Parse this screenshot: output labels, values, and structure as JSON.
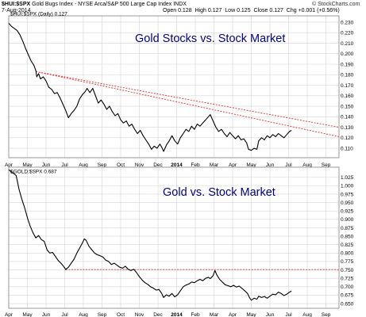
{
  "header": {
    "symbol": "$HUI:$SPX",
    "description": "Gold Bugs Index - NYSE Arca/S&P 500 Large Cap Index  INDX",
    "date": "7-Aug-2014",
    "open_label": "Open",
    "open": "0.128",
    "high_label": "High",
    "high": "0.127",
    "low_label": "Low",
    "low": "0.125",
    "close_label": "Close",
    "close": "0.127",
    "chg_label": "Chg",
    "chg": "+0.001 (+0.56%)",
    "brand": "© StockCharts.com",
    "panel1_legend": "$HUI:$SPX (Daily) 0.127",
    "panel2_legend": "$GOLD:$SPX 0.687"
  },
  "colors": {
    "series": "#000000",
    "annotation": "#00008b",
    "trend": "#e03030",
    "grid": "#d4d4d4",
    "frame": "#7f7f7f"
  },
  "chart_data": [
    {
      "type": "line",
      "title": "Gold Stocks vs. Stock Market",
      "x_tick_labels": [
        "Apr",
        "May",
        "Jun",
        "Jul",
        "Aug",
        "Sep",
        "Oct",
        "Nov",
        "Dec",
        "2014",
        "Feb",
        "Mar",
        "Apr",
        "May",
        "Jun",
        "Jul",
        "Aug",
        "Sep"
      ],
      "y_tick_labels": [
        "0.110",
        "0.120",
        "0.130",
        "0.140",
        "0.150",
        "0.160",
        "0.170",
        "0.180",
        "0.190",
        "0.200",
        "0.210",
        "0.220",
        "0.230"
      ],
      "ylim": [
        0.101,
        0.236
      ],
      "x_range_months": [
        0,
        17.7
      ],
      "grid": true,
      "series": [
        {
          "values": [
            [
              0.0,
              0.229
            ],
            [
              0.15,
              0.226
            ],
            [
              0.3,
              0.224
            ],
            [
              0.45,
              0.222
            ],
            [
              0.6,
              0.218
            ],
            [
              0.75,
              0.212
            ],
            [
              0.9,
              0.205
            ],
            [
              1.05,
              0.199
            ],
            [
              1.2,
              0.193
            ],
            [
              1.35,
              0.189
            ],
            [
              1.45,
              0.184
            ],
            [
              1.5,
              0.178
            ],
            [
              1.6,
              0.181
            ],
            [
              1.7,
              0.176
            ],
            [
              1.85,
              0.178
            ],
            [
              2.0,
              0.174
            ],
            [
              2.15,
              0.168
            ],
            [
              2.3,
              0.166
            ],
            [
              2.45,
              0.162
            ],
            [
              2.6,
              0.163
            ],
            [
              2.75,
              0.158
            ],
            [
              2.9,
              0.152
            ],
            [
              3.05,
              0.146
            ],
            [
              3.2,
              0.139
            ],
            [
              3.35,
              0.143
            ],
            [
              3.5,
              0.146
            ],
            [
              3.65,
              0.15
            ],
            [
              3.8,
              0.157
            ],
            [
              3.95,
              0.161
            ],
            [
              4.1,
              0.164
            ],
            [
              4.2,
              0.167
            ],
            [
              4.35,
              0.163
            ],
            [
              4.5,
              0.167
            ],
            [
              4.65,
              0.16
            ],
            [
              4.8,
              0.153
            ],
            [
              4.95,
              0.156
            ],
            [
              5.1,
              0.152
            ],
            [
              5.25,
              0.147
            ],
            [
              5.4,
              0.15
            ],
            [
              5.55,
              0.145
            ],
            [
              5.7,
              0.141
            ],
            [
              5.85,
              0.143
            ],
            [
              6.0,
              0.137
            ],
            [
              6.15,
              0.134
            ],
            [
              6.3,
              0.136
            ],
            [
              6.45,
              0.131
            ],
            [
              6.6,
              0.133
            ],
            [
              6.75,
              0.128
            ],
            [
              6.9,
              0.124
            ],
            [
              7.05,
              0.127
            ],
            [
              7.2,
              0.122
            ],
            [
              7.35,
              0.118
            ],
            [
              7.5,
              0.114
            ],
            [
              7.65,
              0.109
            ],
            [
              7.8,
              0.112
            ],
            [
              7.95,
              0.11
            ],
            [
              8.1,
              0.114
            ],
            [
              8.2,
              0.111
            ],
            [
              8.3,
              0.107
            ],
            [
              8.45,
              0.113
            ],
            [
              8.6,
              0.117
            ],
            [
              8.75,
              0.122
            ],
            [
              8.9,
              0.117
            ],
            [
              9.05,
              0.114
            ],
            [
              9.2,
              0.12
            ],
            [
              9.35,
              0.124
            ],
            [
              9.5,
              0.128
            ],
            [
              9.65,
              0.126
            ],
            [
              9.8,
              0.131
            ],
            [
              9.95,
              0.128
            ],
            [
              10.1,
              0.133
            ],
            [
              10.25,
              0.131
            ],
            [
              10.4,
              0.134
            ],
            [
              10.55,
              0.137
            ],
            [
              10.7,
              0.14
            ],
            [
              10.8,
              0.142
            ],
            [
              10.95,
              0.136
            ],
            [
              11.1,
              0.13
            ],
            [
              11.25,
              0.126
            ],
            [
              11.4,
              0.128
            ],
            [
              11.55,
              0.124
            ],
            [
              11.7,
              0.121
            ],
            [
              11.85,
              0.125
            ],
            [
              12.0,
              0.122
            ],
            [
              12.15,
              0.119
            ],
            [
              12.3,
              0.122
            ],
            [
              12.45,
              0.118
            ],
            [
              12.6,
              0.119
            ],
            [
              12.75,
              0.115
            ],
            [
              12.85,
              0.109
            ],
            [
              13.0,
              0.108
            ],
            [
              13.15,
              0.11
            ],
            [
              13.3,
              0.109
            ],
            [
              13.4,
              0.117
            ],
            [
              13.55,
              0.12
            ],
            [
              13.7,
              0.118
            ],
            [
              13.85,
              0.122
            ],
            [
              14.0,
              0.12
            ],
            [
              14.15,
              0.123
            ],
            [
              14.3,
              0.121
            ],
            [
              14.45,
              0.124
            ],
            [
              14.6,
              0.122
            ],
            [
              14.75,
              0.12
            ],
            [
              14.9,
              0.123
            ],
            [
              15.05,
              0.126
            ],
            [
              15.15,
              0.127
            ]
          ]
        }
      ],
      "trendlines": [
        {
          "from": [
            1.45,
            0.183
          ],
          "to": [
            17.7,
            0.13
          ]
        },
        {
          "from": [
            1.45,
            0.183
          ],
          "to": [
            17.7,
            0.121
          ]
        }
      ]
    },
    {
      "type": "line",
      "title": "Gold vs. Stock Market",
      "x_tick_labels": [
        "Apr",
        "May",
        "Jun",
        "Jul",
        "Aug",
        "Sep",
        "Oct",
        "Nov",
        "Dec",
        "2014",
        "Feb",
        "Mar",
        "Apr",
        "May",
        "Jun",
        "Jul",
        "Aug",
        "Sep"
      ],
      "y_tick_labels": [
        "0.650",
        "0.675",
        "0.700",
        "0.725",
        "0.750",
        "0.775",
        "0.800",
        "0.825",
        "0.850",
        "0.875",
        "0.900",
        "0.925",
        "0.950",
        "0.975",
        "1.000",
        "1.025"
      ],
      "ylim": [
        0.636,
        1.055
      ],
      "x_range_months": [
        0,
        17.7
      ],
      "grid": true,
      "series": [
        {
          "values": [
            [
              0.0,
              1.048
            ],
            [
              0.15,
              1.04
            ],
            [
              0.3,
              1.035
            ],
            [
              0.4,
              1.03
            ],
            [
              0.55,
              0.99
            ],
            [
              0.7,
              0.96
            ],
            [
              0.85,
              0.935
            ],
            [
              1.0,
              0.905
            ],
            [
              1.15,
              0.88
            ],
            [
              1.3,
              0.86
            ],
            [
              1.45,
              0.845
            ],
            [
              1.6,
              0.852
            ],
            [
              1.75,
              0.84
            ],
            [
              1.9,
              0.835
            ],
            [
              2.05,
              0.81
            ],
            [
              2.2,
              0.8
            ],
            [
              2.35,
              0.802
            ],
            [
              2.5,
              0.79
            ],
            [
              2.65,
              0.778
            ],
            [
              2.8,
              0.77
            ],
            [
              2.95,
              0.76
            ],
            [
              3.05,
              0.751
            ],
            [
              3.2,
              0.758
            ],
            [
              3.35,
              0.77
            ],
            [
              3.5,
              0.782
            ],
            [
              3.65,
              0.8
            ],
            [
              3.8,
              0.815
            ],
            [
              3.95,
              0.83
            ],
            [
              4.05,
              0.842
            ],
            [
              4.15,
              0.838
            ],
            [
              4.3,
              0.82
            ],
            [
              4.45,
              0.81
            ],
            [
              4.6,
              0.8
            ],
            [
              4.75,
              0.795
            ],
            [
              4.9,
              0.792
            ],
            [
              5.05,
              0.788
            ],
            [
              5.2,
              0.779
            ],
            [
              5.35,
              0.775
            ],
            [
              5.5,
              0.766
            ],
            [
              5.65,
              0.77
            ],
            [
              5.8,
              0.764
            ],
            [
              5.95,
              0.758
            ],
            [
              6.1,
              0.755
            ],
            [
              6.25,
              0.761
            ],
            [
              6.4,
              0.752
            ],
            [
              6.55,
              0.748
            ],
            [
              6.7,
              0.752
            ],
            [
              6.85,
              0.742
            ],
            [
              7.0,
              0.73
            ],
            [
              7.15,
              0.72
            ],
            [
              7.3,
              0.712
            ],
            [
              7.45,
              0.707
            ],
            [
              7.6,
              0.7
            ],
            [
              7.75,
              0.696
            ],
            [
              7.9,
              0.69
            ],
            [
              8.05,
              0.692
            ],
            [
              8.2,
              0.68
            ],
            [
              8.3,
              0.668
            ],
            [
              8.45,
              0.676
            ],
            [
              8.6,
              0.672
            ],
            [
              8.75,
              0.68
            ],
            [
              8.9,
              0.67
            ],
            [
              9.05,
              0.676
            ],
            [
              9.2,
              0.688
            ],
            [
              9.35,
              0.7
            ],
            [
              9.5,
              0.705
            ],
            [
              9.65,
              0.708
            ],
            [
              9.8,
              0.714
            ],
            [
              9.95,
              0.712
            ],
            [
              10.1,
              0.718
            ],
            [
              10.25,
              0.722
            ],
            [
              10.4,
              0.718
            ],
            [
              10.55,
              0.725
            ],
            [
              10.7,
              0.728
            ],
            [
              10.8,
              0.724
            ],
            [
              10.95,
              0.733
            ],
            [
              11.05,
              0.748
            ],
            [
              11.15,
              0.735
            ],
            [
              11.3,
              0.722
            ],
            [
              11.45,
              0.714
            ],
            [
              11.6,
              0.706
            ],
            [
              11.75,
              0.703
            ],
            [
              11.9,
              0.7
            ],
            [
              12.05,
              0.704
            ],
            [
              12.2,
              0.699
            ],
            [
              12.35,
              0.702
            ],
            [
              12.5,
              0.695
            ],
            [
              12.65,
              0.688
            ],
            [
              12.8,
              0.68
            ],
            [
              12.9,
              0.668
            ],
            [
              13.0,
              0.66
            ],
            [
              13.15,
              0.666
            ],
            [
              13.3,
              0.663
            ],
            [
              13.4,
              0.672
            ],
            [
              13.55,
              0.668
            ],
            [
              13.7,
              0.671
            ],
            [
              13.85,
              0.666
            ],
            [
              14.0,
              0.672
            ],
            [
              14.15,
              0.678
            ],
            [
              14.3,
              0.676
            ],
            [
              14.45,
              0.684
            ],
            [
              14.6,
              0.68
            ],
            [
              14.75,
              0.674
            ],
            [
              14.9,
              0.678
            ],
            [
              15.05,
              0.684
            ],
            [
              15.15,
              0.687
            ]
          ]
        }
      ],
      "trendlines": [
        {
          "from": [
            3.05,
            0.751
          ],
          "to": [
            17.7,
            0.751
          ]
        }
      ]
    }
  ]
}
